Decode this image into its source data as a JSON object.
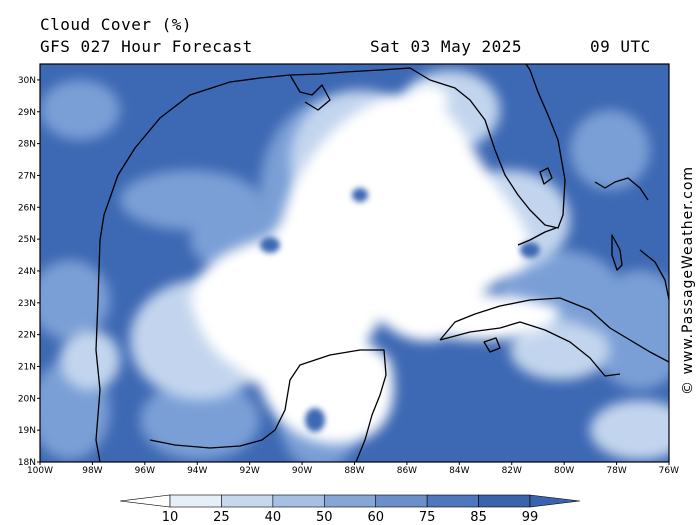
{
  "header": {
    "title": "Cloud Cover (%)",
    "subtitle": "GFS 027 Hour Forecast",
    "date": "Sat 03 May 2025",
    "time": "09 UTC"
  },
  "credit": "© www.PassageWeather.com",
  "map": {
    "lat_labels": [
      "30N",
      "29N",
      "28N",
      "27N",
      "26N",
      "25N",
      "24N",
      "23N",
      "22N",
      "21N",
      "20N",
      "19N",
      "18N"
    ],
    "lon_labels": [
      "100W",
      "98W",
      "96W",
      "94W",
      "92W",
      "90W",
      "88W",
      "86W",
      "84W",
      "82W",
      "80W",
      "78W",
      "76W"
    ],
    "lat_range": [
      18,
      30.5
    ],
    "lon_range": [
      -100,
      -76
    ]
  },
  "colorbar": {
    "levels": [
      "10",
      "25",
      "40",
      "50",
      "60",
      "75",
      "85",
      "99"
    ],
    "colors": [
      "#ffffff",
      "#e6eef8",
      "#c7d7ee",
      "#a6bfe3",
      "#86a6d6",
      "#6a8fcb",
      "#4f77bd",
      "#3a63ad"
    ]
  },
  "colors": {
    "dense_cloud": "#3d68b3",
    "mid_cloud": "#7a9fd6",
    "light_cloud": "#c3d5ee",
    "coast": "#000000"
  }
}
